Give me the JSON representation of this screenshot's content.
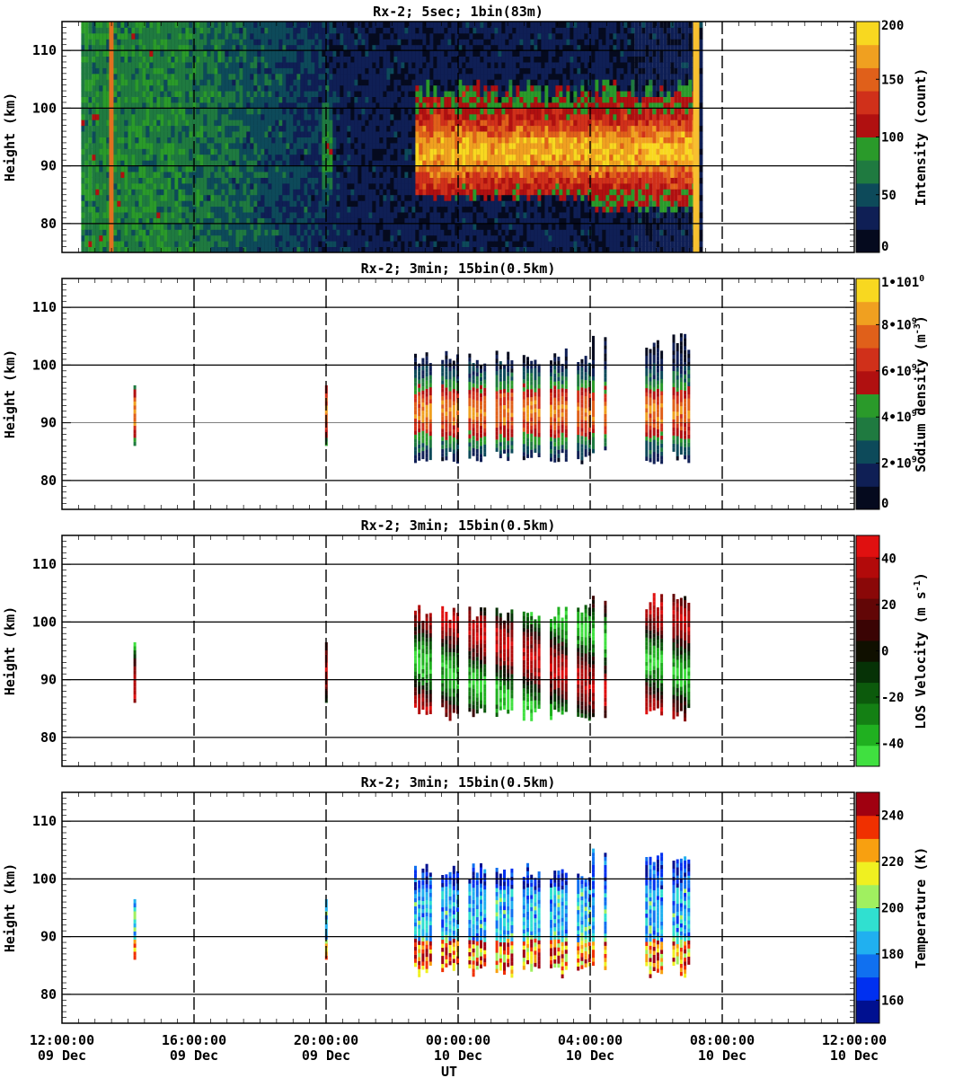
{
  "figure": {
    "xlabel": "UT",
    "x_ticks": [
      {
        "time": "12:00:00",
        "date": "09 Dec"
      },
      {
        "time": "16:00:00",
        "date": "09 Dec"
      },
      {
        "time": "20:00:00",
        "date": "09 Dec"
      },
      {
        "time": "00:00:00",
        "date": "10 Dec"
      },
      {
        "time": "04:00:00",
        "date": "10 Dec"
      },
      {
        "time": "08:00:00",
        "date": "10 Dec"
      },
      {
        "time": "12:00:00",
        "date": "10 Dec"
      }
    ]
  },
  "chart_data": [
    {
      "type": "heatmap",
      "title": "Rx-2;  5sec; 1bin(83m)",
      "ylabel": "Height (km)",
      "ylim": [
        75,
        115
      ],
      "y_ticks": [
        "80",
        "90",
        "100",
        "110"
      ],
      "colorbar_label": "Intensity (count)",
      "colorbar_ticks": [
        "0",
        "50",
        "100",
        "150",
        "200"
      ],
      "colorbar_range": [
        0,
        200
      ],
      "colors": [
        "#050a1e",
        "#0f1f55",
        "#0d4a5a",
        "#1f7a40",
        "#2a9a2a",
        "#b01010",
        "#d0301a",
        "#e0601a",
        "#f0a020",
        "#f8d820"
      ],
      "data_windows": [
        {
          "start": "12:35 09 Dec",
          "end": "07:20 10 Dec"
        }
      ],
      "layer_height_km": [
        83,
        102
      ],
      "peak_height_km": 92
    },
    {
      "type": "heatmap",
      "title": "Rx-2; 3min; 15bin(0.5km)",
      "ylabel": "Height (km)",
      "ylim": [
        75,
        115
      ],
      "y_ticks": [
        "80",
        "90",
        "100",
        "110"
      ],
      "colorbar_label": "Sodium density (m-3)",
      "colorbar_ticks": [
        "0",
        "2•109",
        "4•109",
        "6•109",
        "8•109",
        "1•1010"
      ],
      "colorbar_range": [
        0,
        10000000000
      ],
      "colors": [
        "#050a1e",
        "#0f1f55",
        "#0d4a5a",
        "#1f7a40",
        "#2a9a2a",
        "#b01010",
        "#d0301a",
        "#e0601a",
        "#f0a020",
        "#f8d820"
      ],
      "data_windows": [
        {
          "start": "14:10 09 Dec",
          "end": "14:14 09 Dec"
        },
        {
          "start": "19:58 09 Dec",
          "end": "20:00 09 Dec"
        },
        {
          "start": "22:40 09 Dec",
          "end": "04:30 10 Dec"
        },
        {
          "start": "05:40 10 Dec",
          "end": "07:10 10 Dec"
        }
      ],
      "layer_height_km": [
        83,
        104
      ]
    },
    {
      "type": "heatmap",
      "title": "Rx-2; 3min; 15bin(0.5km)",
      "ylabel": "Height (km)",
      "ylim": [
        75,
        115
      ],
      "y_ticks": [
        "80",
        "90",
        "100",
        "110"
      ],
      "colorbar_label": "LOS Velocity (m s-1)",
      "colorbar_ticks": [
        "-40",
        "-20",
        "0",
        "20",
        "40"
      ],
      "colorbar_range": [
        -50,
        50
      ],
      "colors": [
        "#40e040",
        "#20b020",
        "#148014",
        "#0c5a0c",
        "#063206",
        "#101000",
        "#3a0404",
        "#620606",
        "#8a0808",
        "#b20a0a",
        "#e01010"
      ],
      "data_windows": [
        {
          "start": "14:10 09 Dec",
          "end": "14:14 09 Dec"
        },
        {
          "start": "19:58 09 Dec",
          "end": "20:00 09 Dec"
        },
        {
          "start": "22:40 09 Dec",
          "end": "04:30 10 Dec"
        },
        {
          "start": "05:40 10 Dec",
          "end": "07:10 10 Dec"
        }
      ],
      "layer_height_km": [
        83,
        104
      ]
    },
    {
      "type": "heatmap",
      "title": "Rx-2; 3min; 15bin(0.5km)",
      "ylabel": "Height (km)",
      "ylim": [
        75,
        115
      ],
      "y_ticks": [
        "80",
        "90",
        "100",
        "110"
      ],
      "colorbar_label": "Temperature (K)",
      "colorbar_ticks": [
        "160",
        "180",
        "200",
        "220",
        "240"
      ],
      "colorbar_range": [
        150,
        250
      ],
      "colors": [
        "#001090",
        "#0030f0",
        "#1070f0",
        "#20b0f0",
        "#30e0d0",
        "#a0f060",
        "#f0f020",
        "#f8a010",
        "#f03000",
        "#a00010"
      ],
      "data_windows": [
        {
          "start": "14:10 09 Dec",
          "end": "14:14 09 Dec"
        },
        {
          "start": "19:58 09 Dec",
          "end": "20:00 09 Dec"
        },
        {
          "start": "22:40 09 Dec",
          "end": "04:30 10 Dec"
        },
        {
          "start": "05:40 10 Dec",
          "end": "07:10 10 Dec"
        }
      ],
      "layer_height_km": [
        83,
        104
      ]
    }
  ]
}
